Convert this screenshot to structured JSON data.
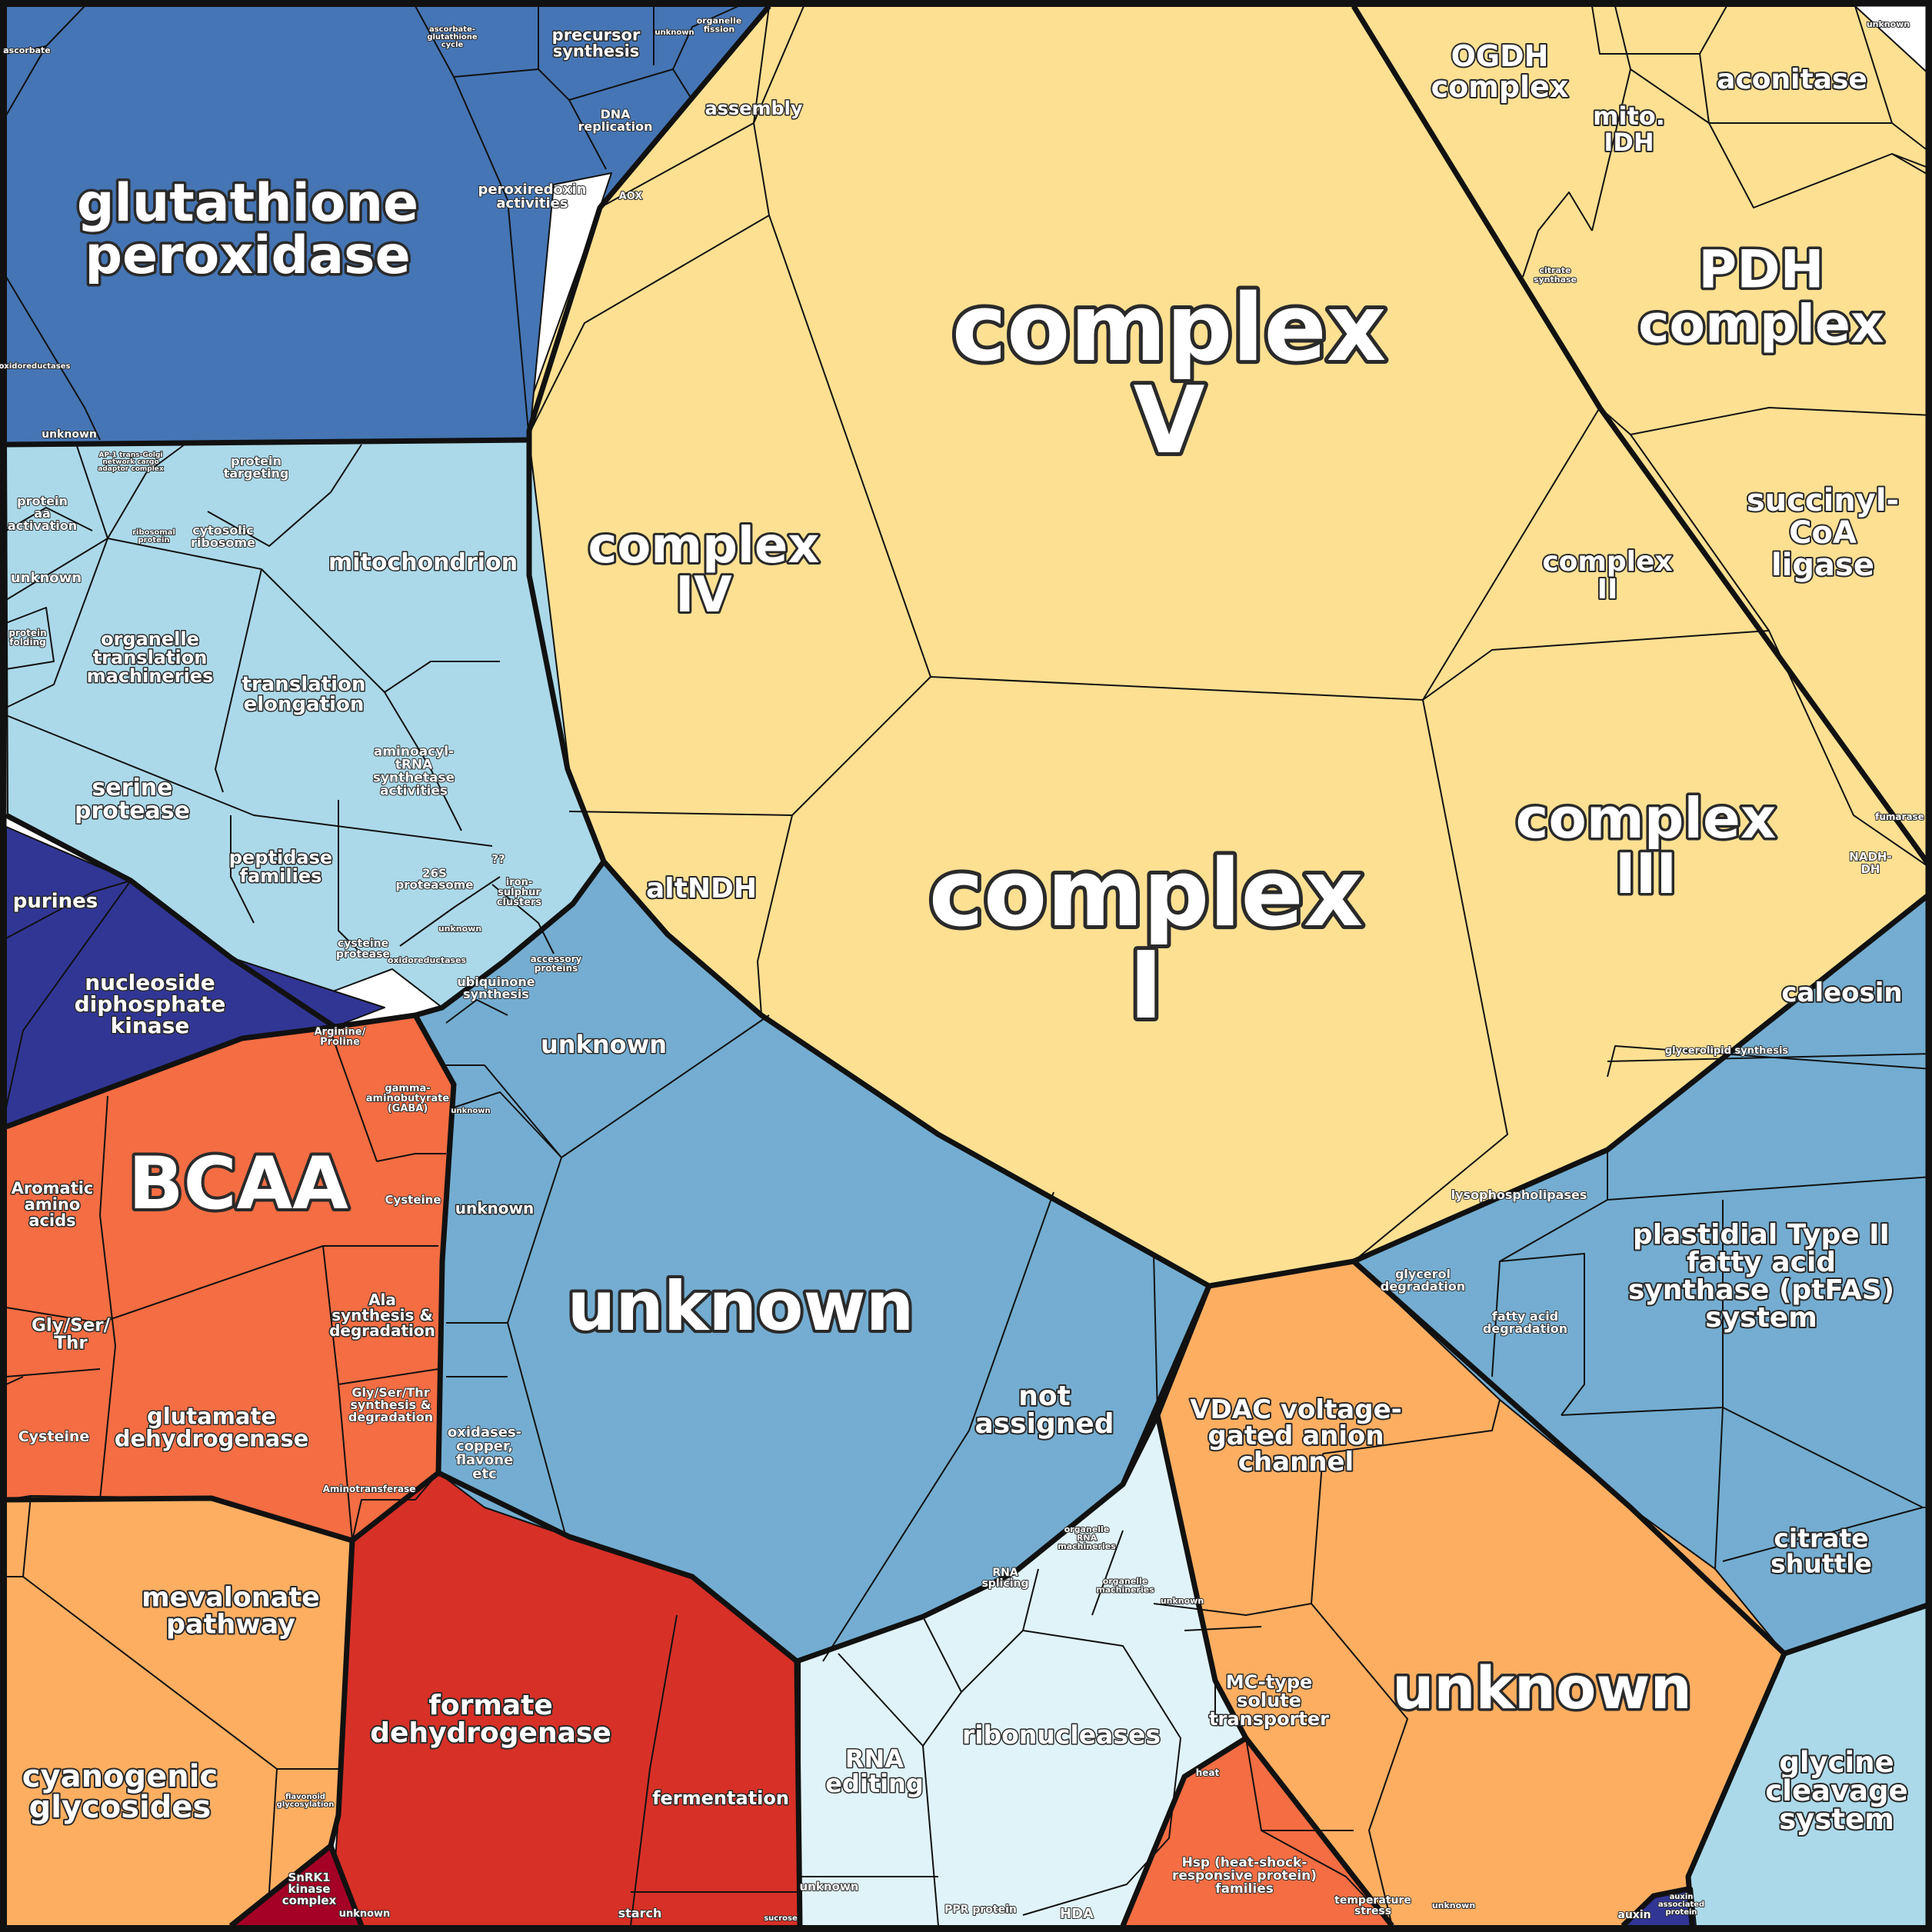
{
  "colors": {
    "energy": "#fde092",
    "redox": "#4575b4",
    "protein": "#abd9e9",
    "nucleotide": "#313695",
    "amino_acid": "#f46d43",
    "transport": "#74add1",
    "lipid": "#fdae61",
    "secondary": "#fdae61",
    "rna": "#e0f3f8",
    "fermentation": "#d73027",
    "stress": "#f46d43",
    "signalling": "#a50026",
    "border": "#111111"
  },
  "labels": {
    "complex_v": "complex\nV",
    "complex_i": "complex\nI",
    "complex_iii": "complex\nIII",
    "complex_iv": "complex\nIV",
    "complex_ii": "complex\nII",
    "pdh": "PDH\ncomplex",
    "ogdh": "OGDH\ncomplex",
    "aconitase": "aconitase",
    "mito_idh": "mito.\nIDH",
    "succinyl": "succinyl-\nCoA\nligase",
    "assembly": "assembly",
    "altndh": "altNDH",
    "aox": "AOX",
    "nadh_dh": "NADH-\nDH",
    "fumarase": "fumarase",
    "citrate_synthase": "citrate\nsynthase",
    "glutathione": "glutathione\nperoxidase",
    "peroxiredoxin": "peroxiredoxin\nactivities",
    "precursor": "precursor\nsynthesis",
    "dna_replication": "DNA\nreplication",
    "organelle_fission": "organelle\nfission",
    "ascorbate_cycle": "ascorbate-\nglutathione\ncycle",
    "ascorbate": "ascorbate",
    "oxidoreductases": "oxidoreductases",
    "unknown_redox": "unknown",
    "unknown_top": "unknown",
    "unknown_topright": "unknown",
    "mitochondrion": "mitochondrion",
    "organelle_translation": "organelle\ntranslation\nmachineries",
    "translation_elongation": "translation\nelongation",
    "protein_aa_activation": "protein\naa\nactivation",
    "protein_targeting": "protein\ntargeting",
    "cytosolic_ribosome": "cytosolic\nribosome",
    "unknown_protein": "unknown",
    "protein_folding": "protein\nfolding",
    "aminoacyl": "aminoacyl-\ntRNA\nsynthetase\nactivities",
    "serine_protease": "serine\nprotease",
    "peptidase": "peptidase\nfamilies",
    "proteasome": "26S\nproteasome",
    "cysteine_protease": "cysteine\nprotease",
    "ap1": "AP-1 trans-Golgi\nnetwork cargo\nadaptor complex",
    "ribosomal_protein": "ribosomal\nprotein",
    "purines": "purines",
    "ndk": "nucleoside\ndiphosphate\nkinase",
    "bcaa": "BCAA",
    "aromatic": "Aromatic\namino\nacids",
    "gly_ser_thr": "Gly/Ser/\nThr",
    "cysteine_a": "Cysteine",
    "cysteine_b": "Cysteine",
    "glutamate_dh": "glutamate\ndehydrogenase",
    "ala": "Ala\nsynthesis &\ndegradation",
    "gly_ser_thr_syn": "Gly/Ser/Thr\nsynthesis &\ndegradation",
    "arginine": "Arginine/\nProline",
    "gaba": "gamma-\naminobutyrate\n(GABA)",
    "aminotransferase": "Aminotransferase",
    "unknown_transport_big": "unknown",
    "unknown_transport_top": "unknown",
    "unknown_transport_left": "unknown",
    "unknown_transport_small": "unknown",
    "not_assigned": "not\nassigned",
    "oxidases": "oxidases-\ncopper,\nflavone\netc",
    "iron_sulphur": "iron-\nsulphur\nclusters",
    "ubiquinone": "ubiquinone\nsynthesis",
    "accessory": "accessory\nproteins",
    "oxidoreductases_b": "oxidoreductases",
    "unknown_mid": "unknown",
    "qq": "??",
    "caleosin": "caleosin",
    "glycerolipid": "glycerolipid synthesis",
    "lysophospholipases": "lysophospholipases",
    "glycerol_degradation": "glycerol\ndegradation",
    "fatty_acid_degradation": "fatty acid\ndegradation",
    "ptfas": "plastidial Type II\nfatty acid\nsynthase (ptFAS)\nsystem",
    "citrate_shuttle": "citrate\nshuttle",
    "vdac": "VDAC voltage-\ngated anion\nchannel",
    "unknown_lipid_big": "unknown",
    "mc_type": "MC-type\nsolute\ntransporter",
    "unknown_lipid_small": "unknown",
    "glycine_cleavage": "glycine\ncleavage\nsystem",
    "mevalonate": "mevalonate\npathway",
    "cyanogenic": "cyanogenic\nglycosides",
    "flavonoid": "flavonoid\nglycosylation",
    "formate_dh": "formate\ndehydrogenase",
    "fermentation": "fermentation",
    "starch": "starch",
    "sucrose": "sucrose",
    "snrk1": "SnRK1\nkinase\ncomplex",
    "unknown_bottom": "unknown",
    "rna_editing": "RNA\nediting",
    "ribonucleases": "ribonucleases",
    "rna_splicing": "RNA\nsplicing",
    "organelle_rna": "organelle\nRNA\nmachineries",
    "organelle_machineries": "organelle\nmachineries",
    "ppr_protein": "PPR protein",
    "hda": "HDA",
    "unknown_rna": "unknown",
    "hsp": "Hsp (heat-shock-\nresponsive protein)\nfamilies",
    "heat": "heat",
    "temperature_stress": "temperature\nstress",
    "auxin": "auxin",
    "auxin_protein": "auxin\nassociated\nprotein",
    "unknown_stress": "unknown"
  }
}
